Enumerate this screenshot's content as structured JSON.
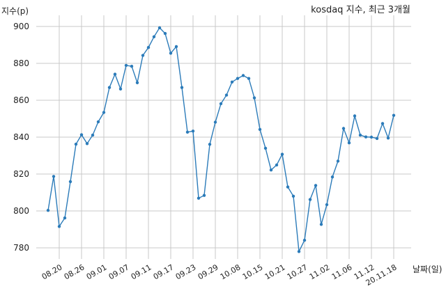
{
  "chart_data": {
    "type": "line",
    "title": "kosdaq 지수, 최근 3개월",
    "xlabel": "날짜(일)",
    "ylabel": "지수(p)",
    "ylim": [
      770,
      905
    ],
    "y_ticks": [
      780,
      800,
      820,
      840,
      860,
      880,
      900
    ],
    "x_tick_labels": [
      "08.20",
      "08.26",
      "09.01",
      "09.07",
      "09.11",
      "09.17",
      "09.23",
      "09.29",
      "10.08",
      "10.15",
      "10.21",
      "10.27",
      "11.02",
      "11.06",
      "11.12",
      "20.11.18"
    ],
    "grid": true,
    "color": "#2b7bb9",
    "series": [
      {
        "values": [
          800.3,
          818.7,
          791.6,
          796.2,
          815.9,
          836.2,
          841.3,
          836.5,
          841.1,
          848.3,
          853.4,
          866.9,
          874.1,
          866.1,
          878.9,
          878.4,
          869.5,
          884.3,
          888.6,
          894.4,
          899.3,
          896.2,
          885.5,
          889.1,
          866.9,
          842.7,
          843.3,
          806.9,
          808.4,
          836.1,
          848.1,
          858.1,
          862.8,
          869.9,
          871.8,
          873.4,
          871.8,
          861.3,
          844.2,
          834.0,
          822.2,
          824.9,
          830.7,
          813.0,
          808.0,
          778.0,
          784.1,
          806.2,
          813.8,
          792.7,
          803.4,
          818.4,
          827.0,
          844.7,
          836.9,
          851.5,
          841.1,
          840.1,
          840.0,
          839.3,
          847.4,
          839.5,
          851.8
        ]
      }
    ]
  }
}
